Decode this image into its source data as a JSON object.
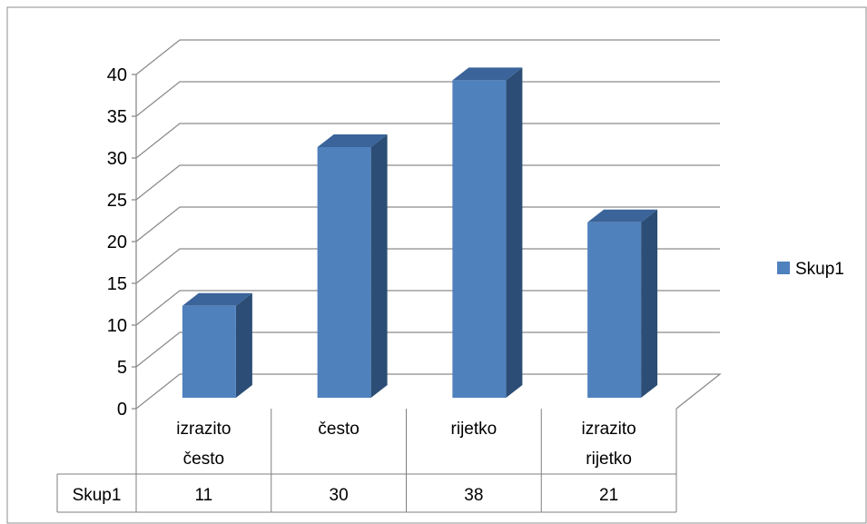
{
  "chart_data": {
    "type": "bar",
    "style": "3d-column",
    "categories": [
      [
        "izrazito",
        "često"
      ],
      [
        "često"
      ],
      [
        "rijetko"
      ],
      [
        "izrazito",
        "rijetko"
      ]
    ],
    "series": [
      {
        "name": "Skup1",
        "values": [
          11,
          30,
          38,
          21
        ]
      }
    ],
    "ylim": [
      0,
      40
    ],
    "yticks": [
      0,
      5,
      10,
      15,
      20,
      25,
      30,
      35,
      40
    ],
    "grid": true,
    "legend": "right",
    "data_table": {
      "row_header": "Skup1",
      "values": [
        "11",
        "30",
        "38",
        "21"
      ]
    },
    "colors": {
      "bar_front": "#4f81bd",
      "bar_side": "#2c4d75",
      "bar_top": "#3a649a",
      "legend_swatch": "#4f81bd"
    }
  }
}
